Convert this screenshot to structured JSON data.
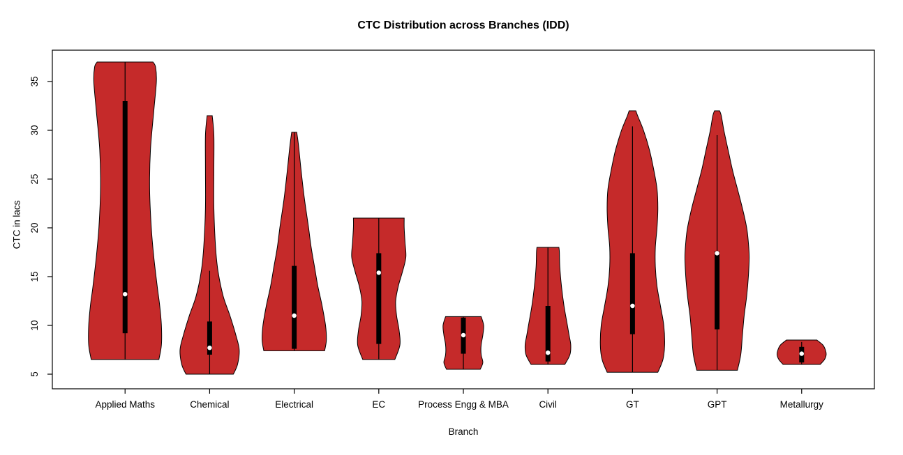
{
  "title": "CTC Distribution across Branches (IDD)",
  "colors": {
    "violin_fill": "#C52A2A",
    "violin_stroke": "#000000",
    "box": "#000000",
    "median_dot": "#FFFFFF",
    "background": "#FFFFFF",
    "axis": "#000000"
  },
  "chart_data": {
    "type": "violin",
    "title": "CTC Distribution across Branches (IDD)",
    "xlabel": "Branch",
    "ylabel": "CTC in lacs",
    "ylim": [
      3.5,
      38.5
    ],
    "yticks": [
      5,
      10,
      15,
      20,
      25,
      30,
      35
    ],
    "grid": false,
    "legend": "none",
    "categories": [
      "Applied Maths",
      "Chemical",
      "Electrical",
      "EC",
      "Process Engg & MBA",
      "Civil",
      "GT",
      "GPT",
      "Metallurgy"
    ],
    "violins": [
      {
        "label": "Applied Maths",
        "min": 6.5,
        "max": 37,
        "q1": 9.2,
        "q3": 33,
        "median": 13.2,
        "whisker_low": 6.5,
        "whisker_high": 37,
        "profile": [
          [
            6.5,
            0.4
          ],
          [
            8,
            0.43
          ],
          [
            10,
            0.43
          ],
          [
            12,
            0.41
          ],
          [
            14,
            0.38
          ],
          [
            17,
            0.34
          ],
          [
            20,
            0.31
          ],
          [
            24,
            0.29
          ],
          [
            28,
            0.3
          ],
          [
            32,
            0.34
          ],
          [
            35,
            0.37
          ],
          [
            36.5,
            0.36
          ],
          [
            37,
            0.33
          ]
        ]
      },
      {
        "label": "Chemical",
        "min": 5,
        "max": 31.5,
        "q1": 7.0,
        "q3": 10.4,
        "median": 7.7,
        "whisker_low": 5,
        "whisker_high": 15.6,
        "profile": [
          [
            5,
            0.28
          ],
          [
            6,
            0.33
          ],
          [
            7.5,
            0.35
          ],
          [
            9,
            0.31
          ],
          [
            11,
            0.24
          ],
          [
            13,
            0.16
          ],
          [
            15.5,
            0.1
          ],
          [
            18,
            0.07
          ],
          [
            22,
            0.05
          ],
          [
            26,
            0.05
          ],
          [
            29.5,
            0.05
          ],
          [
            31.5,
            0.03
          ]
        ]
      },
      {
        "label": "Electrical",
        "min": 7.4,
        "max": 29.8,
        "q1": 7.6,
        "q3": 16.1,
        "median": 11.0,
        "whisker_low": 7.4,
        "whisker_high": 29.8,
        "profile": [
          [
            7.4,
            0.36
          ],
          [
            8.5,
            0.38
          ],
          [
            10,
            0.37
          ],
          [
            12,
            0.33
          ],
          [
            14,
            0.28
          ],
          [
            16,
            0.24
          ],
          [
            18,
            0.2
          ],
          [
            20,
            0.17
          ],
          [
            23,
            0.12
          ],
          [
            26,
            0.08
          ],
          [
            28.5,
            0.05
          ],
          [
            29.8,
            0.03
          ]
        ]
      },
      {
        "label": "EC",
        "min": 6.5,
        "max": 21,
        "q1": 8.1,
        "q3": 17.4,
        "median": 15.4,
        "whisker_low": 6.5,
        "whisker_high": 21,
        "profile": [
          [
            6.5,
            0.19
          ],
          [
            8,
            0.25
          ],
          [
            9.5,
            0.24
          ],
          [
            11,
            0.21
          ],
          [
            12.5,
            0.2
          ],
          [
            14,
            0.23
          ],
          [
            15.5,
            0.28
          ],
          [
            17,
            0.32
          ],
          [
            18.5,
            0.31
          ],
          [
            20,
            0.3
          ],
          [
            21,
            0.3
          ]
        ]
      },
      {
        "label": "Process Engg & MBA",
        "min": 5.5,
        "max": 10.9,
        "q1": 7.1,
        "q3": 10.8,
        "median": 9.0,
        "whisker_low": 5.5,
        "whisker_high": 10.9,
        "profile": [
          [
            5.5,
            0.2
          ],
          [
            6.2,
            0.23
          ],
          [
            7,
            0.21
          ],
          [
            8,
            0.21
          ],
          [
            9,
            0.23
          ],
          [
            10,
            0.24
          ],
          [
            10.9,
            0.21
          ]
        ]
      },
      {
        "label": "Civil",
        "min": 6,
        "max": 18,
        "q1": 6.3,
        "q3": 12.0,
        "median": 7.2,
        "whisker_low": 6,
        "whisker_high": 18,
        "profile": [
          [
            6,
            0.2
          ],
          [
            7,
            0.26
          ],
          [
            8,
            0.27
          ],
          [
            9,
            0.25
          ],
          [
            10,
            0.23
          ],
          [
            12,
            0.19
          ],
          [
            14,
            0.16
          ],
          [
            16,
            0.14
          ],
          [
            17.5,
            0.135
          ],
          [
            18,
            0.13
          ]
        ]
      },
      {
        "label": "GT",
        "min": 5.2,
        "max": 32,
        "q1": 9.1,
        "q3": 17.4,
        "median": 12.0,
        "whisker_low": 5.2,
        "whisker_high": 30.4,
        "profile": [
          [
            5.2,
            0.3
          ],
          [
            6.5,
            0.36
          ],
          [
            8,
            0.38
          ],
          [
            10,
            0.37
          ],
          [
            12,
            0.33
          ],
          [
            14,
            0.29
          ],
          [
            16,
            0.27
          ],
          [
            18,
            0.27
          ],
          [
            20,
            0.29
          ],
          [
            22,
            0.3
          ],
          [
            24,
            0.29
          ],
          [
            26,
            0.25
          ],
          [
            28,
            0.2
          ],
          [
            30,
            0.13
          ],
          [
            31.5,
            0.06
          ],
          [
            32,
            0.04
          ]
        ]
      },
      {
        "label": "GPT",
        "min": 5.4,
        "max": 32,
        "q1": 9.6,
        "q3": 17.6,
        "median": 17.4,
        "whisker_low": 5.4,
        "whisker_high": 29.5,
        "profile": [
          [
            5.4,
            0.24
          ],
          [
            7,
            0.28
          ],
          [
            9,
            0.3
          ],
          [
            11,
            0.32
          ],
          [
            13,
            0.35
          ],
          [
            15,
            0.37
          ],
          [
            17,
            0.38
          ],
          [
            18.5,
            0.37
          ],
          [
            20,
            0.35
          ],
          [
            22,
            0.3
          ],
          [
            24,
            0.24
          ],
          [
            26,
            0.18
          ],
          [
            28,
            0.13
          ],
          [
            30,
            0.08
          ],
          [
            31.5,
            0.05
          ],
          [
            32,
            0.03
          ]
        ]
      },
      {
        "label": "Metallurgy",
        "min": 6,
        "max": 8.5,
        "q1": 6.2,
        "q3": 7.8,
        "median": 7.1,
        "whisker_low": 6,
        "whisker_high": 8.3,
        "profile": [
          [
            6,
            0.22
          ],
          [
            6.5,
            0.27
          ],
          [
            7,
            0.29
          ],
          [
            7.5,
            0.28
          ],
          [
            8,
            0.25
          ],
          [
            8.5,
            0.18
          ]
        ]
      }
    ]
  }
}
